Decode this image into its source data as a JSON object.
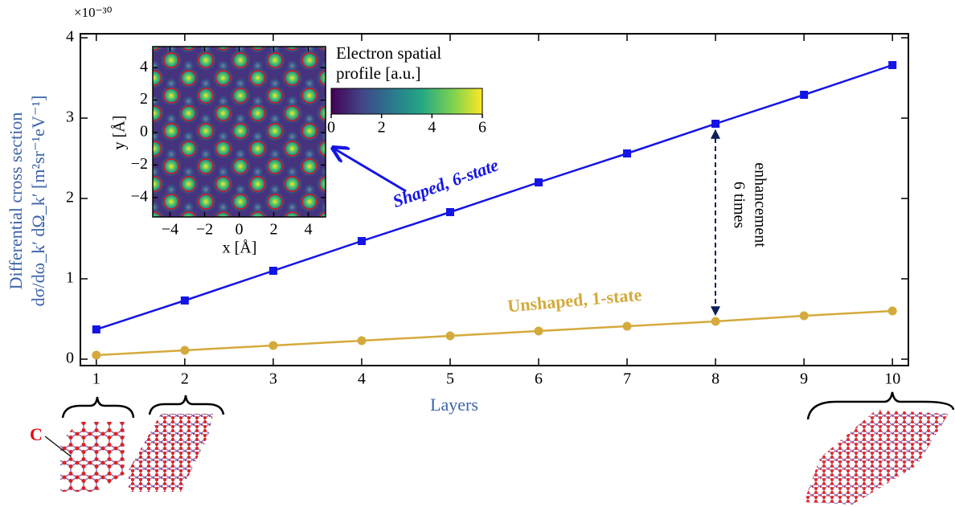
{
  "chart_data": [
    {
      "type": "line",
      "multiplier": "×10⁻³⁰",
      "xlabel": "Layers",
      "ylabel": [
        "Differential cross section",
        "dσ/dω_k′ dΩ_k′ [m²sr⁻¹eV⁻¹]"
      ],
      "x": [
        1,
        2,
        3,
        4,
        5,
        6,
        7,
        8,
        9,
        10
      ],
      "series": [
        {
          "name": "Shaped, 6-state",
          "color": "#1414e6",
          "marker": "square",
          "values": [
            0.37,
            0.73,
            1.1,
            1.47,
            1.83,
            2.2,
            2.56,
            2.93,
            3.29,
            3.66
          ]
        },
        {
          "name": "Unshaped, 1-state",
          "color": "#d4aa3c",
          "marker": "circle",
          "values": [
            0.05,
            0.11,
            0.17,
            0.23,
            0.29,
            0.35,
            0.41,
            0.47,
            0.54,
            0.6
          ]
        }
      ],
      "xlim": [
        0.82,
        10.18
      ],
      "ylim": [
        -0.08,
        4.05
      ],
      "xticks": [
        1,
        2,
        3,
        4,
        5,
        6,
        7,
        8,
        9,
        10
      ],
      "yticks": [
        0,
        1,
        2,
        3,
        4
      ],
      "annotations": [
        "6 times",
        "enhancement",
        "C"
      ]
    },
    {
      "type": "heatmap",
      "xlabel": "x [Å]",
      "ylabel": "y [Å]",
      "xlim": [
        -5,
        5
      ],
      "ylim": [
        -5.2,
        5.3
      ],
      "xticks": [
        {
          "value": -4,
          "label": "−4"
        },
        {
          "value": -2,
          "label": "−2"
        },
        0,
        2,
        4
      ],
      "yticks": [
        {
          "value": -4,
          "label": "−4"
        },
        {
          "value": -2,
          "label": "−2"
        },
        0,
        2,
        4
      ],
      "colorbar": {
        "title": [
          "Electron spatial",
          "profile [a.u.]"
        ],
        "lim": [
          0,
          6
        ],
        "ticks": [
          0,
          2,
          4,
          6
        ]
      }
    }
  ]
}
